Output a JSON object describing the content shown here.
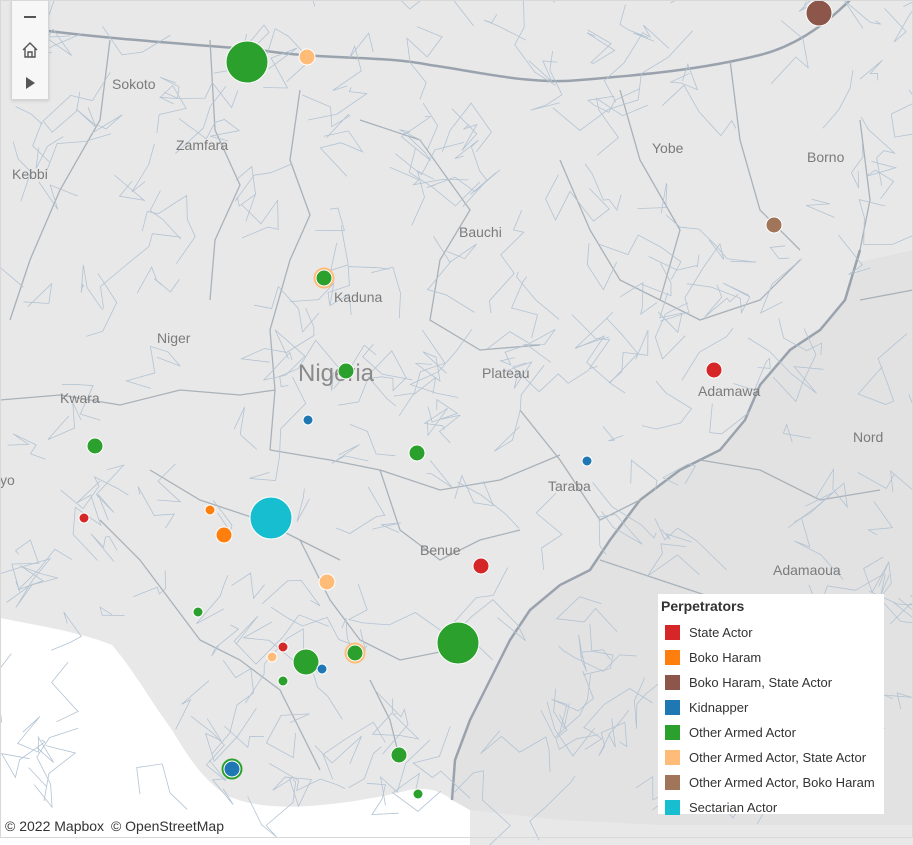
{
  "map": {
    "country_label": "Nigeria",
    "places": [
      {
        "name": "Sokoto"
      },
      {
        "name": "Zamfara"
      },
      {
        "name": "Kebbi"
      },
      {
        "name": "Yobe"
      },
      {
        "name": "Borno"
      },
      {
        "name": "Bauchi"
      },
      {
        "name": "Kaduna"
      },
      {
        "name": "Niger"
      },
      {
        "name": "Plateau"
      },
      {
        "name": "Kwara"
      },
      {
        "name": "Adamawa"
      },
      {
        "name": "Nord"
      },
      {
        "name": "Taraba"
      },
      {
        "name": "Benue"
      },
      {
        "name": "Adamaoua"
      },
      {
        "name": "yo"
      }
    ],
    "markers": [
      {
        "category": "Other Armed Actor",
        "size": "large"
      },
      {
        "category": "Other Armed Actor, State Actor",
        "size": "small"
      },
      {
        "category": "Boko Haram, State Actor",
        "size": "medium"
      },
      {
        "category": "Other Armed Actor, Boko Haram",
        "size": "small"
      },
      {
        "category": "Other Armed Actor",
        "size": "small",
        "ring": "Other Armed Actor, State Actor"
      },
      {
        "category": "Other Armed Actor",
        "size": "small"
      },
      {
        "category": "State Actor",
        "size": "small"
      },
      {
        "category": "Kidnapper",
        "size": "tiny"
      },
      {
        "category": "Other Armed Actor",
        "size": "small"
      },
      {
        "category": "Other Armed Actor",
        "size": "small"
      },
      {
        "category": "Kidnapper",
        "size": "tiny"
      },
      {
        "category": "State Actor",
        "size": "tiny"
      },
      {
        "category": "Boko Haram",
        "size": "tiny"
      },
      {
        "category": "Boko Haram",
        "size": "small"
      },
      {
        "category": "Sectarian Actor",
        "size": "large"
      },
      {
        "category": "State Actor",
        "size": "small"
      },
      {
        "category": "Other Armed Actor, State Actor",
        "size": "small"
      },
      {
        "category": "Other Armed Actor",
        "size": "tiny"
      },
      {
        "category": "Other Armed Actor",
        "size": "large"
      },
      {
        "category": "State Actor",
        "size": "tiny"
      },
      {
        "category": "Other Armed Actor, State Actor",
        "size": "tiny"
      },
      {
        "category": "Other Armed Actor",
        "size": "medium"
      },
      {
        "category": "Kidnapper",
        "size": "tiny"
      },
      {
        "category": "Other Armed Actor",
        "size": "small",
        "ring": "Other Armed Actor, State Actor"
      },
      {
        "category": "Other Armed Actor",
        "size": "tiny"
      },
      {
        "category": "Other Armed Actor",
        "size": "small"
      },
      {
        "category": "Kidnapper",
        "size": "small",
        "ring": "Other Armed Actor"
      },
      {
        "category": "Other Armed Actor",
        "size": "tiny"
      }
    ]
  },
  "controls": {
    "zoom_out": "zoom-out",
    "home": "home",
    "expand": "play"
  },
  "attribution": {
    "mapbox": "© 2022 Mapbox",
    "osm": "© OpenStreetMap"
  },
  "legend": {
    "title": "Perpetrators",
    "items": [
      {
        "label": "State Actor",
        "color": "#d62728"
      },
      {
        "label": "Boko Haram",
        "color": "#ff7f0e"
      },
      {
        "label": "Boko Haram, State Actor",
        "color": "#8c564b"
      },
      {
        "label": "Kidnapper",
        "color": "#1f77b4"
      },
      {
        "label": "Other Armed Actor",
        "color": "#2ca02c"
      },
      {
        "label": "Other Armed Actor, State Actor",
        "color": "#ffbb78"
      },
      {
        "label": "Other Armed Actor, Boko Haram",
        "color": "#a0755a"
      },
      {
        "label": "Sectarian Actor",
        "color": "#17becf"
      }
    ]
  }
}
